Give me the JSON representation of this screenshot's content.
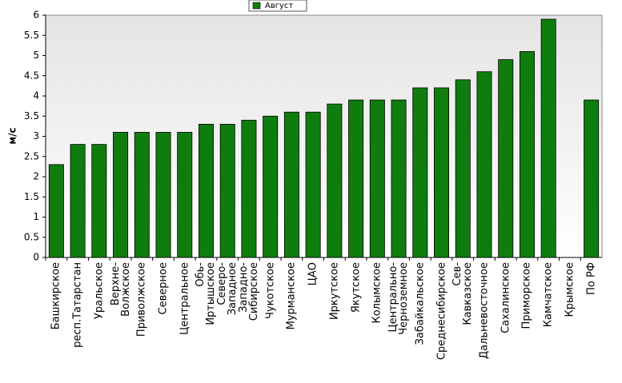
{
  "chart_data": {
    "type": "bar",
    "legend": "Август",
    "y_label": "м/с",
    "color": "#0e7d0e",
    "categories": [
      "Башкирское",
      "респ.Татарстан",
      "Уральское",
      "Верхне-\nВолжское",
      "Приволжское",
      "Северное",
      "Центральное",
      "Обь-\nИртышское",
      "Северо-\nЗападное",
      "Западно-\nСибирское",
      "Чукотское",
      "Мурманское",
      "ЦАО",
      "Иркутское",
      "Якутское",
      "Колымское",
      "Центрально-\nЧерноземное",
      "Забайкальское",
      "Среднесибирское",
      "Сев-\nКавказское",
      "Дальневосточное",
      "Сахалинское",
      "Приморское",
      "Камчатское",
      "Крымское",
      "По РФ"
    ],
    "values": [
      2.3,
      2.8,
      2.8,
      3.1,
      3.1,
      3.1,
      3.1,
      3.3,
      3.3,
      3.4,
      3.5,
      3.6,
      3.6,
      3.8,
      3.9,
      3.9,
      3.9,
      4.2,
      4.2,
      4.4,
      4.6,
      4.9,
      5.1,
      5.9,
      null,
      3.9
    ],
    "ylim": [
      0,
      6
    ],
    "yticks": [
      0,
      0.5,
      1,
      1.5,
      2,
      2.5,
      3,
      3.5,
      4,
      4.5,
      5,
      5.5,
      6
    ],
    "grid": false
  }
}
